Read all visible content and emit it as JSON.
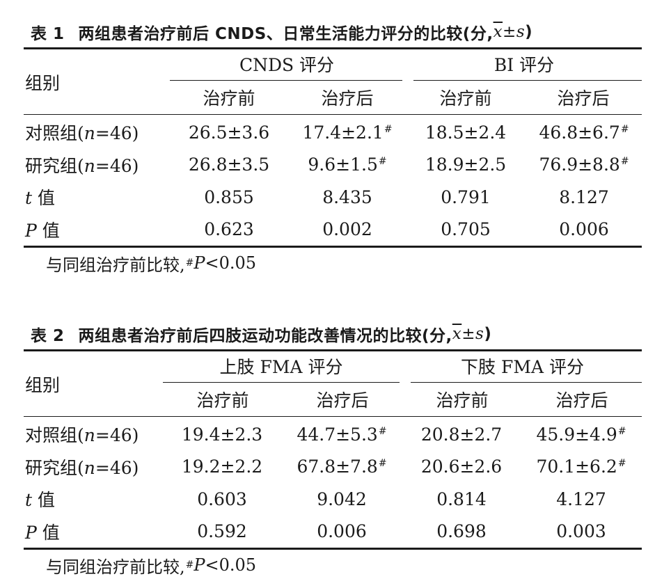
{
  "tables": [
    {
      "id": "t1",
      "caption_num": "表 1",
      "caption_text": "两组患者治疗前后 CNDS、日常生活能力评分的比较(分,",
      "caption_stat_x": "x",
      "caption_stat_pm": "±",
      "caption_stat_s": "s",
      "caption_close": ")",
      "row_header": "组别",
      "group1": "CNDS 评分",
      "group2": "BI 评分",
      "sub": [
        "治疗前",
        "治疗后",
        "治疗前",
        "治疗后"
      ],
      "rows": [
        {
          "label": "对照组(",
          "n": "n",
          "eq": "=46)",
          "cells": [
            "26.5±3.6",
            "17.4±2.1",
            "18.5±2.4",
            "46.8±6.7"
          ],
          "marks": [
            "",
            "#",
            "",
            "#"
          ]
        },
        {
          "label": "研究组(",
          "n": "n",
          "eq": "=46)",
          "cells": [
            "26.8±3.5",
            "9.6±1.5",
            "18.9±2.5",
            "76.9±8.8"
          ],
          "marks": [
            "",
            "#",
            "",
            "#"
          ]
        },
        {
          "label": "",
          "n": "t",
          "eq": " 值",
          "cells": [
            "0.855",
            "8.435",
            "0.791",
            "8.127"
          ],
          "marks": [
            "",
            "",
            "",
            ""
          ]
        },
        {
          "label": "",
          "n": "P",
          "eq": " 值",
          "cells": [
            "0.623",
            "0.002",
            "0.705",
            "0.006"
          ],
          "marks": [
            "",
            "",
            "",
            ""
          ]
        }
      ],
      "footnote_text": "与同组治疗前比较,",
      "footnote_mark": "#",
      "footnote_p": "P",
      "footnote_tail": "<0.05"
    },
    {
      "id": "t2",
      "caption_num": "表 2",
      "caption_text": "两组患者治疗前后四肢运动功能改善情况的比较(分,",
      "caption_stat_x": "x",
      "caption_stat_pm": "±",
      "caption_stat_s": "s",
      "caption_close": ")",
      "row_header": "组别",
      "group1": "上肢 FMA 评分",
      "group2": "下肢 FMA 评分",
      "sub": [
        "治疗前",
        "治疗后",
        "治疗前",
        "治疗后"
      ],
      "rows": [
        {
          "label": "对照组(",
          "n": "n",
          "eq": "=46)",
          "cells": [
            "19.4±2.3",
            "44.7±5.3",
            "20.8±2.7",
            "45.9±4.9"
          ],
          "marks": [
            "",
            "#",
            "",
            "#"
          ]
        },
        {
          "label": "研究组(",
          "n": "n",
          "eq": "=46)",
          "cells": [
            "19.2±2.2",
            "67.8±7.8",
            "20.6±2.6",
            "70.1±6.2"
          ],
          "marks": [
            "",
            "#",
            "",
            "#"
          ]
        },
        {
          "label": "",
          "n": "t",
          "eq": " 值",
          "cells": [
            "0.603",
            "9.042",
            "0.814",
            "4.127"
          ],
          "marks": [
            "",
            "",
            "",
            ""
          ]
        },
        {
          "label": "",
          "n": "P",
          "eq": " 值",
          "cells": [
            "0.592",
            "0.006",
            "0.698",
            "0.003"
          ],
          "marks": [
            "",
            "",
            "",
            ""
          ]
        }
      ],
      "footnote_text": "与同组治疗前比较,",
      "footnote_mark": "#",
      "footnote_p": "P",
      "footnote_tail": "<0.05"
    }
  ]
}
